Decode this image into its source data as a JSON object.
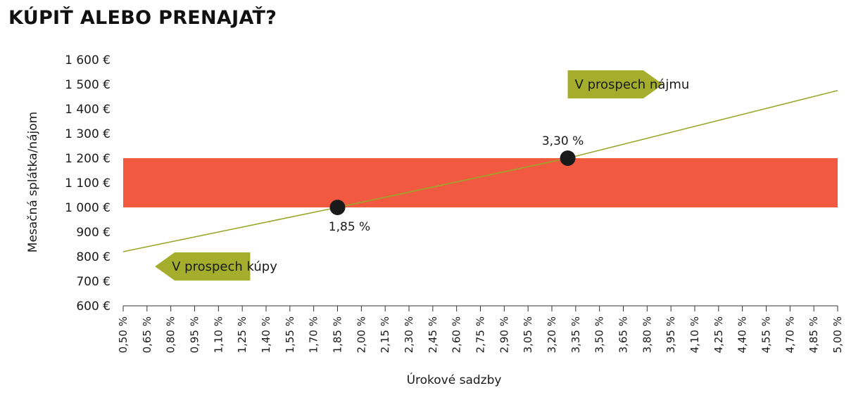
{
  "title": "KÚPIŤ ALEBO PRENAJAŤ?",
  "colors": {
    "band": "#f15a40",
    "line": "#9aa72a",
    "arrow": "#a4ae2c",
    "point": "#1a1a1a",
    "axis": "#333333"
  },
  "chart_data": {
    "type": "line",
    "xlabel": "Úrokové sadzby",
    "ylabel": "Mesačná splátka/nájom",
    "x_ticks": [
      "0,50 %",
      "0,65 %",
      "0,80 %",
      "0,95 %",
      "1,10 %",
      "1,25 %",
      "1,40 %",
      "1,55 %",
      "1,70 %",
      "1,85 %",
      "2,00 %",
      "2,15 %",
      "2,30 %",
      "2,45 %",
      "2,60 %",
      "2,75 %",
      "2,90 %",
      "3,05 %",
      "3,20 %",
      "3,35 %",
      "3,50 %",
      "3,65 %",
      "3,80 %",
      "3,95 %",
      "4,10 %",
      "4,25 %",
      "4,40 %",
      "4,55 %",
      "4,70 %",
      "4,85 %",
      "5,00 %"
    ],
    "y_ticks": [
      "600 €",
      "700 €",
      "800 €",
      "900 €",
      "1 000 €",
      "1 100 €",
      "1 200 €",
      "1 300 €",
      "1 400 €",
      "1 500 €",
      "1 600 €"
    ],
    "xlim": [
      0.5,
      5.0
    ],
    "ylim": [
      600,
      1600
    ],
    "series": [
      {
        "x": [
          0.5,
          1.85,
          3.3,
          5.0
        ],
        "y": [
          820,
          1000,
          1200,
          1475
        ]
      }
    ],
    "band": {
      "from": 1000,
      "to": 1200
    },
    "points": [
      {
        "x": 1.85,
        "y": 1000,
        "label": "1,85 %",
        "label_pos": "below"
      },
      {
        "x": 3.3,
        "y": 1200,
        "label": "3,30 %",
        "label_pos": "above"
      }
    ],
    "annotations": [
      {
        "text": "V prospech nájmu",
        "direction": "right",
        "x": [
          3.3,
          3.9
        ],
        "y": 1500
      },
      {
        "text": "V prospech kúpy",
        "direction": "left",
        "x": [
          0.7,
          1.3
        ],
        "y": 760
      }
    ],
    "grid": false
  }
}
